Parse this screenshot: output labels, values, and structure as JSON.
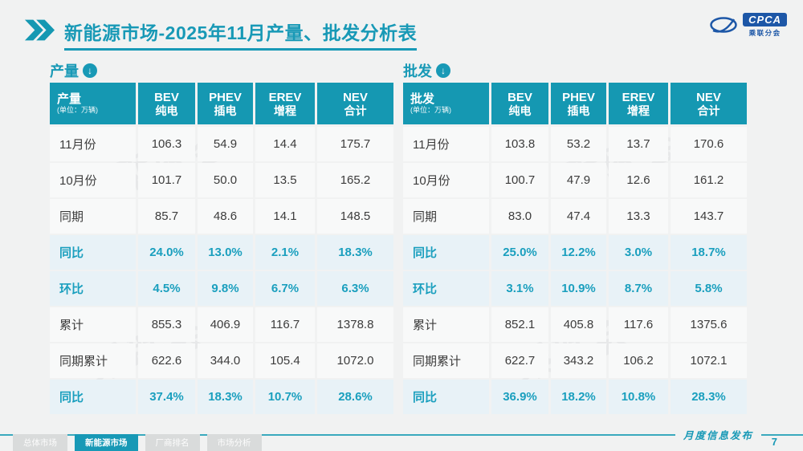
{
  "page": {
    "background": "#f1f2f2",
    "accent": "#1899b6",
    "header_fill": "#1598b2",
    "highlight_fill": "#e8f2f7"
  },
  "header": {
    "title": "新能源市场-2025年11月产量、批发分析表",
    "logo": {
      "name": "CPCA",
      "subtitle": "乘联分会"
    }
  },
  "tables": [
    {
      "section_label": "产量",
      "header": {
        "label": "产量",
        "unit": "(单位：万辆)"
      },
      "columns": [
        {
          "en": "BEV",
          "zh": "纯电"
        },
        {
          "en": "PHEV",
          "zh": "插电"
        },
        {
          "en": "EREV",
          "zh": "增程"
        },
        {
          "en": "NEV",
          "zh": "合计"
        }
      ],
      "rows": [
        {
          "label": "11月份",
          "values": [
            "106.3",
            "54.9",
            "14.4",
            "175.7"
          ],
          "highlight": false
        },
        {
          "label": "10月份",
          "values": [
            "101.7",
            "50.0",
            "13.5",
            "165.2"
          ],
          "highlight": false
        },
        {
          "label": "同期",
          "values": [
            "85.7",
            "48.6",
            "14.1",
            "148.5"
          ],
          "highlight": false
        },
        {
          "label": "同比",
          "values": [
            "24.0%",
            "13.0%",
            "2.1%",
            "18.3%"
          ],
          "highlight": true
        },
        {
          "label": "环比",
          "values": [
            "4.5%",
            "9.8%",
            "6.7%",
            "6.3%"
          ],
          "highlight": true
        },
        {
          "label": "累计",
          "values": [
            "855.3",
            "406.9",
            "116.7",
            "1378.8"
          ],
          "highlight": false
        },
        {
          "label": "同期累计",
          "values": [
            "622.6",
            "344.0",
            "105.4",
            "1072.0"
          ],
          "highlight": false
        },
        {
          "label": "同比",
          "values": [
            "37.4%",
            "18.3%",
            "10.7%",
            "28.6%"
          ],
          "highlight": true
        }
      ]
    },
    {
      "section_label": "批发",
      "header": {
        "label": "批发",
        "unit": "(单位：万辆)"
      },
      "columns": [
        {
          "en": "BEV",
          "zh": "纯电"
        },
        {
          "en": "PHEV",
          "zh": "插电"
        },
        {
          "en": "EREV",
          "zh": "增程"
        },
        {
          "en": "NEV",
          "zh": "合计"
        }
      ],
      "rows": [
        {
          "label": "11月份",
          "values": [
            "103.8",
            "53.2",
            "13.7",
            "170.6"
          ],
          "highlight": false
        },
        {
          "label": "10月份",
          "values": [
            "100.7",
            "47.9",
            "12.6",
            "161.2"
          ],
          "highlight": false
        },
        {
          "label": "同期",
          "values": [
            "83.0",
            "47.4",
            "13.3",
            "143.7"
          ],
          "highlight": false
        },
        {
          "label": "同比",
          "values": [
            "25.0%",
            "12.2%",
            "3.0%",
            "18.7%"
          ],
          "highlight": true
        },
        {
          "label": "环比",
          "values": [
            "3.1%",
            "10.9%",
            "8.7%",
            "5.8%"
          ],
          "highlight": true
        },
        {
          "label": "累计",
          "values": [
            "852.1",
            "405.8",
            "117.6",
            "1375.6"
          ],
          "highlight": false
        },
        {
          "label": "同期累计",
          "values": [
            "622.7",
            "343.2",
            "106.2",
            "1072.1"
          ],
          "highlight": false
        },
        {
          "label": "同比",
          "values": [
            "36.9%",
            "18.2%",
            "10.8%",
            "28.3%"
          ],
          "highlight": true
        }
      ]
    }
  ],
  "watermark": {
    "text": "乘联会"
  },
  "footer": {
    "tabs": [
      {
        "label": "总体市场",
        "active": false
      },
      {
        "label": "新能源市场",
        "active": true
      },
      {
        "label": "厂商排名",
        "active": false
      },
      {
        "label": "市场分析",
        "active": false
      }
    ],
    "release_label": "月度信息发布",
    "page_number": "7"
  }
}
